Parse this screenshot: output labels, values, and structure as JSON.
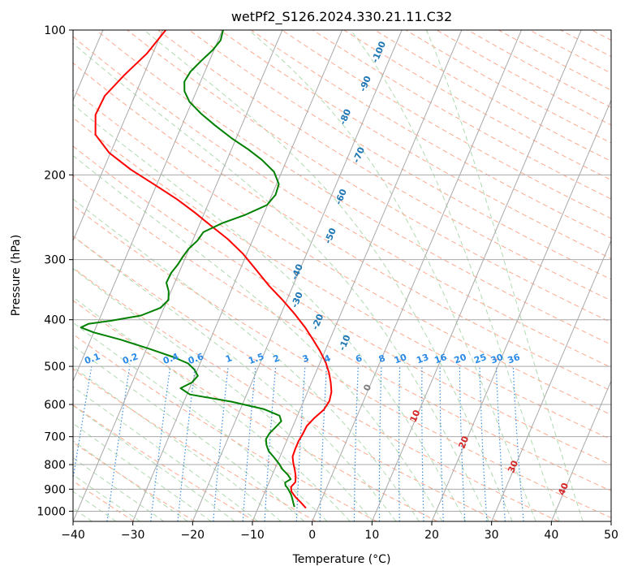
{
  "chart_data": {
    "type": "line",
    "title": "wetPf2_S126.2024.330.21.11.C32",
    "xlabel": "Temperature (°C)",
    "ylabel": "Pressure (hPa)",
    "xlim": [
      -40,
      50
    ],
    "ylim": [
      1050,
      100
    ],
    "yscale": "log",
    "xticks": [
      -40,
      -30,
      -20,
      -10,
      0,
      10,
      20,
      30,
      40,
      50
    ],
    "xtick_labels": [
      "−40",
      "−30",
      "−20",
      "−10",
      "0",
      "10",
      "20",
      "30",
      "40",
      "50"
    ],
    "yticks": [
      100,
      200,
      300,
      400,
      500,
      600,
      700,
      800,
      900,
      1000
    ],
    "ytick_labels": [
      "100",
      "200",
      "300",
      "400",
      "500",
      "600",
      "700",
      "800",
      "900",
      "1000"
    ],
    "grid": true,
    "skew": 35,
    "colors": {
      "temperature": "#ff0000",
      "dewpoint": "#008000",
      "skew_isotherms": "#a9a9a9",
      "dry_adiabats": "#fca98e",
      "moist_adiabats": "#b0dab0",
      "mixing_ratio": "#3a8fe0",
      "blue_labels": "#1f77b4",
      "isotherm_labels": "#d62728"
    },
    "series": [
      {
        "name": "",
        "role": "temperature",
        "points": [
          [
            -2.0,
            985
          ],
          [
            -3.2,
            960
          ],
          [
            -4.5,
            935
          ],
          [
            -5.6,
            910
          ],
          [
            -6.0,
            890
          ],
          [
            -5.6,
            870
          ],
          [
            -6.0,
            845
          ],
          [
            -6.6,
            820
          ],
          [
            -7.3,
            795
          ],
          [
            -7.9,
            770
          ],
          [
            -8.0,
            740
          ],
          [
            -8.0,
            715
          ],
          [
            -7.8,
            690
          ],
          [
            -7.7,
            665
          ],
          [
            -7.0,
            640
          ],
          [
            -6.0,
            615
          ],
          [
            -5.7,
            590
          ],
          [
            -6.0,
            565
          ],
          [
            -6.8,
            540
          ],
          [
            -7.8,
            515
          ],
          [
            -9.1,
            490
          ],
          [
            -10.8,
            465
          ],
          [
            -12.8,
            440
          ],
          [
            -15.0,
            415
          ],
          [
            -17.6,
            390
          ],
          [
            -20.6,
            365
          ],
          [
            -24.0,
            340
          ],
          [
            -27.3,
            315
          ],
          [
            -30.6,
            292
          ],
          [
            -34.2,
            272
          ],
          [
            -38.0,
            255
          ],
          [
            -41.5,
            240
          ],
          [
            -45.5,
            225
          ],
          [
            -50.2,
            210
          ],
          [
            -55.4,
            195
          ],
          [
            -60.2,
            180
          ],
          [
            -63.8,
            165
          ],
          [
            -65.2,
            150
          ],
          [
            -65.0,
            137
          ],
          [
            -63.2,
            124
          ],
          [
            -61.0,
            112
          ],
          [
            -59.5,
            100
          ]
        ]
      },
      {
        "name": "",
        "role": "dewpoint",
        "points": [
          [
            -4.0,
            980
          ],
          [
            -4.5,
            960
          ],
          [
            -5.0,
            940
          ],
          [
            -5.4,
            925
          ],
          [
            -6.0,
            908
          ],
          [
            -6.5,
            895
          ],
          [
            -7.0,
            885
          ],
          [
            -7.3,
            872
          ],
          [
            -6.6,
            858
          ],
          [
            -7.4,
            840
          ],
          [
            -8.7,
            818
          ],
          [
            -9.7,
            796
          ],
          [
            -11.0,
            772
          ],
          [
            -12.3,
            750
          ],
          [
            -13.1,
            728
          ],
          [
            -13.6,
            708
          ],
          [
            -13.4,
            688
          ],
          [
            -12.8,
            668
          ],
          [
            -12.3,
            650
          ],
          [
            -13.0,
            633
          ],
          [
            -16.0,
            614
          ],
          [
            -22.0,
            592
          ],
          [
            -29.5,
            572
          ],
          [
            -31.5,
            555
          ],
          [
            -30.0,
            540
          ],
          [
            -29.5,
            523
          ],
          [
            -30.5,
            508
          ],
          [
            -32.0,
            493
          ],
          [
            -35.0,
            478
          ],
          [
            -39.5,
            460
          ],
          [
            -45.0,
            440
          ],
          [
            -50.0,
            425
          ],
          [
            -52.5,
            415
          ],
          [
            -51.5,
            408
          ],
          [
            -48.0,
            402
          ],
          [
            -43.3,
            392
          ],
          [
            -40.6,
            378
          ],
          [
            -39.8,
            364
          ],
          [
            -40.4,
            349
          ],
          [
            -41.4,
            335
          ],
          [
            -41.3,
            320
          ],
          [
            -40.8,
            308
          ],
          [
            -40.5,
            296
          ],
          [
            -40.1,
            285
          ],
          [
            -39.2,
            274
          ],
          [
            -38.8,
            263
          ],
          [
            -36.3,
            252
          ],
          [
            -33.0,
            242
          ],
          [
            -30.1,
            231
          ],
          [
            -29.4,
            220
          ],
          [
            -29.6,
            209
          ],
          [
            -31.3,
            197
          ],
          [
            -34.2,
            186
          ],
          [
            -37.2,
            177
          ],
          [
            -40.7,
            168
          ],
          [
            -44.4,
            158
          ],
          [
            -47.7,
            149
          ],
          [
            -50.4,
            141
          ],
          [
            -52.0,
            134
          ],
          [
            -52.7,
            128
          ],
          [
            -52.4,
            122
          ],
          [
            -51.4,
            116
          ],
          [
            -50.2,
            110
          ],
          [
            -49.6,
            105
          ],
          [
            -49.9,
            100
          ]
        ]
      }
    ],
    "isotherm_labels": [
      "0",
      "10",
      "20",
      "30",
      "40"
    ],
    "wetbulb_labels": [
      "-100",
      "-90",
      "-80",
      "-70",
      "-60",
      "-50",
      "-40",
      "-30",
      "-20",
      "-10"
    ],
    "mixing_ratio_labels": [
      "0.1",
      "0.2",
      "0.4",
      "0.6",
      "1",
      "1.5",
      "2",
      "3",
      "4",
      "6",
      "8",
      "10",
      "13",
      "16",
      "20",
      "25",
      "30",
      "36"
    ]
  }
}
